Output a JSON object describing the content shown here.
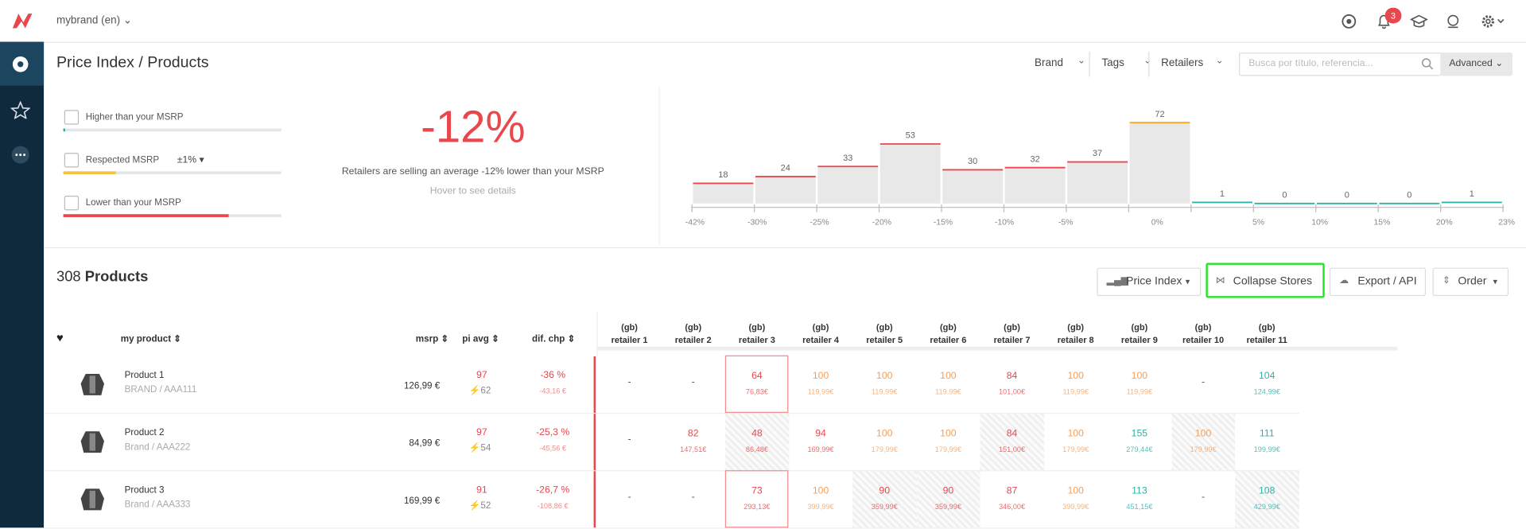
{
  "topbar": {
    "brand": "mybrand (en)",
    "badge": "3"
  },
  "header": {
    "title": "Price Index / Products",
    "filters": [
      "Brand",
      "Tags",
      "Retailers"
    ],
    "search_placeholder": "Busca por título, referencia...",
    "advanced": "Advanced"
  },
  "summary": {
    "options": [
      {
        "label": "Higher than your MSRP",
        "color": "#2bb3a8",
        "fill": 0.01
      },
      {
        "label": "Respected MSRP",
        "color": "#f5c342",
        "fill": 0.24
      },
      {
        "label": "Lower than your MSRP",
        "color": "#e8474e",
        "fill": 0.76
      }
    ],
    "tolerance": "±1%",
    "big": "-12%",
    "text": "Retailers are selling an average -12% lower than your MSRP",
    "hint": "Hover to see details"
  },
  "histogram": {
    "values": [
      18,
      24,
      33,
      53,
      30,
      32,
      37,
      72,
      1,
      0,
      0,
      0,
      1
    ],
    "colors": [
      "#e8474e",
      "#e8474e",
      "#e8474e",
      "#e8474e",
      "#e8474e",
      "#e8474e",
      "#e8474e",
      "#f5a623",
      "#2bb3a8",
      "#2bb3a8",
      "#2bb3a8",
      "#2bb3a8",
      "#2bb3a8"
    ],
    "max": 72,
    "axis_labels": [
      "-42%",
      "-30%",
      "-25%",
      "-20%",
      "-15%",
      "-10%",
      "-5%",
      "0%",
      "5%",
      "10%",
      "15%",
      "20%",
      "23%"
    ]
  },
  "products": {
    "count": "308",
    "label": "Products",
    "buttons": [
      "Price Index",
      "Collapse Stores",
      "Export / API",
      "Order"
    ],
    "columns": [
      "my product",
      "msrp",
      "pi avg",
      "dif. chp"
    ],
    "retailers": [
      {
        "region": "(gb)",
        "name": "retailer 1"
      },
      {
        "region": "(gb)",
        "name": "retailer 2"
      },
      {
        "region": "(gb)",
        "name": "retailer 3"
      },
      {
        "region": "(gb)",
        "name": "retailer 4"
      },
      {
        "region": "(gb)",
        "name": "retailer 5"
      },
      {
        "region": "(gb)",
        "name": "retailer 6"
      },
      {
        "region": "(gb)",
        "name": "retailer 7"
      },
      {
        "region": "(gb)",
        "name": "retailer 8"
      },
      {
        "region": "(gb)",
        "name": "retailer 9"
      },
      {
        "region": "(gb)",
        "name": "retailer 10"
      },
      {
        "region": "(gb)",
        "name": "retailer 11"
      }
    ],
    "rows": [
      {
        "name": "Product 1",
        "ref": "BRAND / AAA111",
        "msrp": "126,99 €",
        "pi": "97",
        "pi_sub": "62",
        "dif": "-36 %",
        "dif_sub": "-43,16 €",
        "cells": [
          {
            "empty": "-"
          },
          {
            "empty": "-"
          },
          {
            "value": "64",
            "price": "76,83€",
            "color": "#e8474e",
            "outlined": true
          },
          {
            "value": "100",
            "price": "119,99€",
            "color": "#f5a05a"
          },
          {
            "value": "100",
            "price": "119,99€",
            "color": "#f5a05a"
          },
          {
            "value": "100",
            "price": "119,99€",
            "color": "#f5a05a"
          },
          {
            "value": "84",
            "price": "101,00€",
            "color": "#e8474e"
          },
          {
            "value": "100",
            "price": "119,99€",
            "color": "#f5a05a"
          },
          {
            "value": "100",
            "price": "119,99€",
            "color": "#f5a05a"
          },
          {
            "empty": "-"
          },
          {
            "value": "104",
            "price": "124,99€",
            "color": "#2bb3a8"
          }
        ]
      },
      {
        "name": "Product 2",
        "ref": "Brand / AAA222",
        "msrp": "84,99 €",
        "pi": "97",
        "pi_sub": "54",
        "dif": "-25,3 %",
        "dif_sub": "-45,56 €",
        "cells": [
          {
            "empty": "-"
          },
          {
            "value": "82",
            "price": "147,51€",
            "color": "#e8474e"
          },
          {
            "value": "48",
            "price": "86,48€",
            "color": "#e8474e",
            "hatched": true
          },
          {
            "value": "94",
            "price": "169,99€",
            "color": "#e8474e"
          },
          {
            "value": "100",
            "price": "179,99€",
            "color": "#f5a05a"
          },
          {
            "value": "100",
            "price": "179,99€",
            "color": "#f5a05a"
          },
          {
            "value": "84",
            "price": "151,00€",
            "color": "#e8474e",
            "hatched": true
          },
          {
            "value": "100",
            "price": "179,99€",
            "color": "#f5a05a"
          },
          {
            "value": "155",
            "price": "279,44€",
            "color": "#2bb3a8"
          },
          {
            "value": "100",
            "price": "179,99€",
            "color": "#f5a05a",
            "hatched": true
          },
          {
            "value": "111",
            "price": "199,99€",
            "color": "#2bb3a8"
          }
        ]
      },
      {
        "name": "Product 3",
        "ref": "Brand / AAA333",
        "msrp": "169,99 €",
        "pi": "91",
        "pi_sub": "52",
        "dif": "-26,7 %",
        "dif_sub": "-108,86 €",
        "cells": [
          {
            "empty": "-"
          },
          {
            "empty": "-"
          },
          {
            "value": "73",
            "price": "293,13€",
            "color": "#e8474e",
            "outlined": true
          },
          {
            "value": "100",
            "price": "399,99€",
            "color": "#f5a05a"
          },
          {
            "value": "90",
            "price": "359,99€",
            "color": "#e8474e",
            "hatched": true
          },
          {
            "value": "90",
            "price": "359,99€",
            "color": "#e8474e",
            "hatched": true
          },
          {
            "value": "87",
            "price": "346,00€",
            "color": "#e8474e"
          },
          {
            "value": "100",
            "price": "399,99€",
            "color": "#f5a05a"
          },
          {
            "value": "113",
            "price": "451,15€",
            "color": "#2bb3a8"
          },
          {
            "empty": "-"
          },
          {
            "value": "108",
            "price": "429,99€",
            "color": "#2bb3a8",
            "hatched": true
          }
        ]
      }
    ]
  }
}
